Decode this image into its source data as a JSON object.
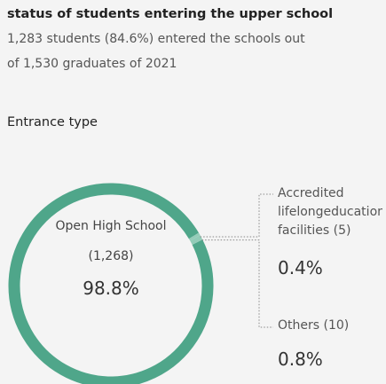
{
  "title": "status of students entering the upper school",
  "subtitle": [
    "1,283 students (84.6%) entered the schools out",
    "of 1,530 graduates of 2021"
  ],
  "chart_data": {
    "type": "pie",
    "donut": true,
    "title": "Entrance type",
    "categories": [
      "Open High School",
      "Accredited lifelongeducation facilities",
      "Others"
    ],
    "count_labels": [
      "(1,268)",
      "(5)",
      "(10)"
    ],
    "values": [
      98.8,
      0.4,
      0.8
    ],
    "value_labels": [
      "98.8%",
      "0.4%",
      "0.8%"
    ],
    "colors": [
      "#4fa68a",
      "#93ccb8",
      "#93ccb8"
    ]
  }
}
